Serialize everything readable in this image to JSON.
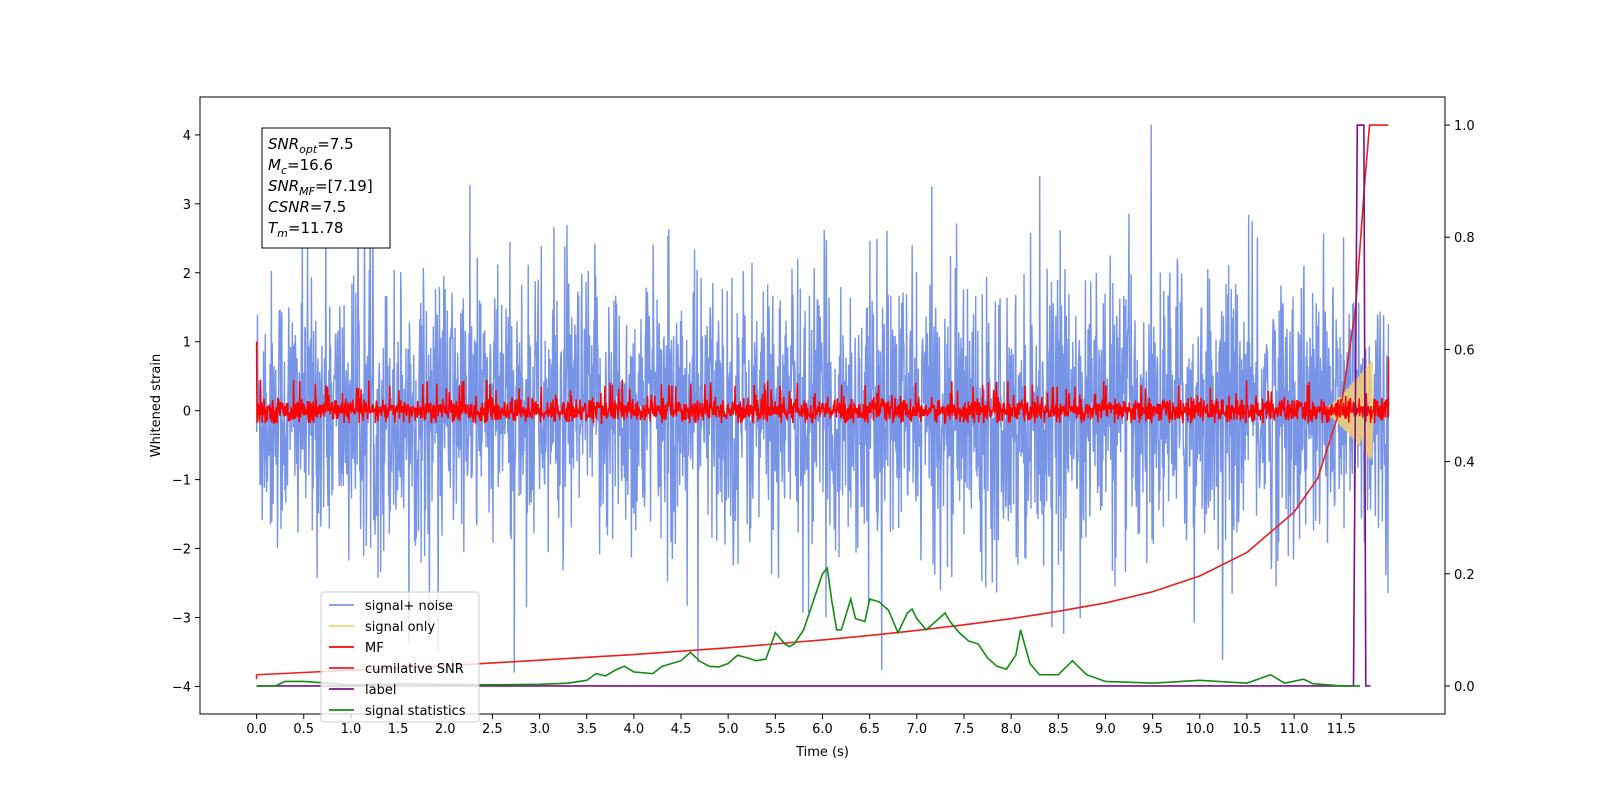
{
  "chart_data": {
    "type": "line",
    "xlabel": "Time (s)",
    "ylabel_left": "Whitened strain",
    "ylabel_right": "",
    "xlim": [
      -0.6,
      12.6
    ],
    "ylim_left": [
      -4.4,
      4.55
    ],
    "ylim_right": [
      -0.05,
      1.05
    ],
    "x_ticks": [
      0.0,
      0.5,
      1.0,
      1.5,
      2.0,
      2.5,
      3.0,
      3.5,
      4.0,
      4.5,
      5.0,
      5.5,
      6.0,
      6.5,
      7.0,
      7.5,
      8.0,
      8.5,
      9.0,
      9.5,
      10.0,
      10.5,
      11.0,
      11.5
    ],
    "x_tick_labels": [
      "0.0",
      "0.5",
      "1.0",
      "1.5",
      "2.0",
      "2.5",
      "3.0",
      "3.5",
      "4.0",
      "4.5",
      "5.0",
      "5.5",
      "6.0",
      "6.5",
      "7.0",
      "7.5",
      "8.0",
      "8.5",
      "9.0",
      "9.5",
      "10.0",
      "10.5",
      "11.0",
      "11.5"
    ],
    "y_left_ticks": [
      -4,
      -3,
      -2,
      -1,
      0,
      1,
      2,
      3,
      4
    ],
    "y_left_tick_labels": [
      "−4",
      "−3",
      "−2",
      "−1",
      "0",
      "1",
      "2",
      "3",
      "4"
    ],
    "y_right_ticks": [
      0.0,
      0.2,
      0.4,
      0.6,
      0.8,
      1.0
    ],
    "y_right_tick_labels": [
      "0.0",
      "0.2",
      "0.4",
      "0.6",
      "0.8",
      "1.0"
    ],
    "grid": false,
    "legend_position": "lower-left",
    "info_box": {
      "lines": [
        {
          "main": "SNR",
          "sub": "opt",
          "rest": "=7.5"
        },
        {
          "main": "M",
          "sub": "c",
          "rest": "=16.6"
        },
        {
          "main": "SNR",
          "sub": "MF",
          "rest": "=[7.19]"
        },
        {
          "main": "CSNR",
          "sub": "",
          "rest": "=7.5"
        },
        {
          "main": "T",
          "sub": "m",
          "rest": "=11.78"
        }
      ]
    },
    "series": [
      {
        "name": "signal+ noise",
        "color": "#7894e6",
        "axis": "left",
        "description_values": {
          "x_start": 0.0,
          "x_end": 12.0,
          "typical_range": [
            -2.3,
            2.3
          ],
          "peak_max": 4.15,
          "peak_min": -3.8
        }
      },
      {
        "name": "signal only",
        "color": "#f5cf72",
        "axis": "left",
        "chirp": {
          "x_start": 11.3,
          "x_end": 11.83,
          "max_amplitude": 0.75
        }
      },
      {
        "name": "MF",
        "color": "#ff0000",
        "axis": "left",
        "description_values": {
          "x_start": 0.0,
          "x_end": 12.0,
          "typical_range": [
            -0.18,
            0.25
          ],
          "start_value": 1.0,
          "end_value": 0.78
        }
      },
      {
        "name": "cumilative SNR",
        "color": "#e8201f",
        "axis": "right",
        "x": [
          0.0,
          0.5,
          1.0,
          1.5,
          2.0,
          2.5,
          3.0,
          3.5,
          4.0,
          4.5,
          5.0,
          5.5,
          6.0,
          6.5,
          7.0,
          7.5,
          8.0,
          8.5,
          9.0,
          9.5,
          10.0,
          10.5,
          11.0,
          11.25,
          11.5,
          11.65,
          11.75,
          11.8,
          12.0
        ],
        "y": [
          0.02,
          0.024,
          0.028,
          0.032,
          0.036,
          0.041,
          0.046,
          0.051,
          0.056,
          0.062,
          0.068,
          0.075,
          0.082,
          0.09,
          0.099,
          0.109,
          0.12,
          0.133,
          0.148,
          0.168,
          0.196,
          0.238,
          0.31,
          0.37,
          0.5,
          0.67,
          0.9,
          1.0,
          1.0
        ]
      },
      {
        "name": "label",
        "color": "#7b0f84",
        "axis": "right",
        "x": [
          0.0,
          11.63,
          11.67,
          11.74,
          11.76,
          11.81
        ],
        "y": [
          0.0,
          0.0,
          1.0,
          1.0,
          0.0,
          0.0
        ]
      },
      {
        "name": "signal statistics",
        "color": "#138b13",
        "axis": "right",
        "x": [
          0.0,
          0.2,
          0.3,
          0.5,
          1.0,
          1.5,
          2.0,
          2.5,
          3.0,
          3.3,
          3.5,
          3.6,
          3.7,
          3.8,
          3.9,
          4.0,
          4.2,
          4.3,
          4.4,
          4.5,
          4.6,
          4.7,
          4.8,
          4.9,
          5.0,
          5.1,
          5.2,
          5.3,
          5.4,
          5.5,
          5.6,
          5.65,
          5.7,
          5.8,
          5.9,
          6.0,
          6.05,
          6.1,
          6.15,
          6.2,
          6.3,
          6.35,
          6.45,
          6.5,
          6.6,
          6.7,
          6.8,
          6.9,
          6.95,
          7.0,
          7.1,
          7.2,
          7.3,
          7.35,
          7.45,
          7.55,
          7.65,
          7.75,
          7.85,
          7.95,
          8.05,
          8.1,
          8.2,
          8.3,
          8.5,
          8.65,
          8.8,
          9.0,
          9.5,
          10.0,
          10.5,
          10.75,
          10.9,
          11.1,
          11.2,
          11.5,
          11.7
        ],
        "y": [
          0.0,
          0.0,
          0.008,
          0.008,
          0.002,
          0.004,
          0.003,
          0.002,
          0.003,
          0.005,
          0.01,
          0.022,
          0.018,
          0.028,
          0.035,
          0.025,
          0.022,
          0.035,
          0.04,
          0.045,
          0.06,
          0.044,
          0.035,
          0.034,
          0.04,
          0.055,
          0.05,
          0.045,
          0.048,
          0.095,
          0.075,
          0.07,
          0.075,
          0.1,
          0.15,
          0.2,
          0.21,
          0.15,
          0.1,
          0.1,
          0.155,
          0.12,
          0.115,
          0.155,
          0.15,
          0.135,
          0.095,
          0.13,
          0.137,
          0.12,
          0.1,
          0.115,
          0.13,
          0.115,
          0.095,
          0.08,
          0.075,
          0.05,
          0.035,
          0.03,
          0.055,
          0.1,
          0.04,
          0.02,
          0.02,
          0.045,
          0.02,
          0.008,
          0.005,
          0.01,
          0.005,
          0.02,
          0.005,
          0.012,
          0.004,
          0.0,
          0.0
        ]
      }
    ]
  }
}
